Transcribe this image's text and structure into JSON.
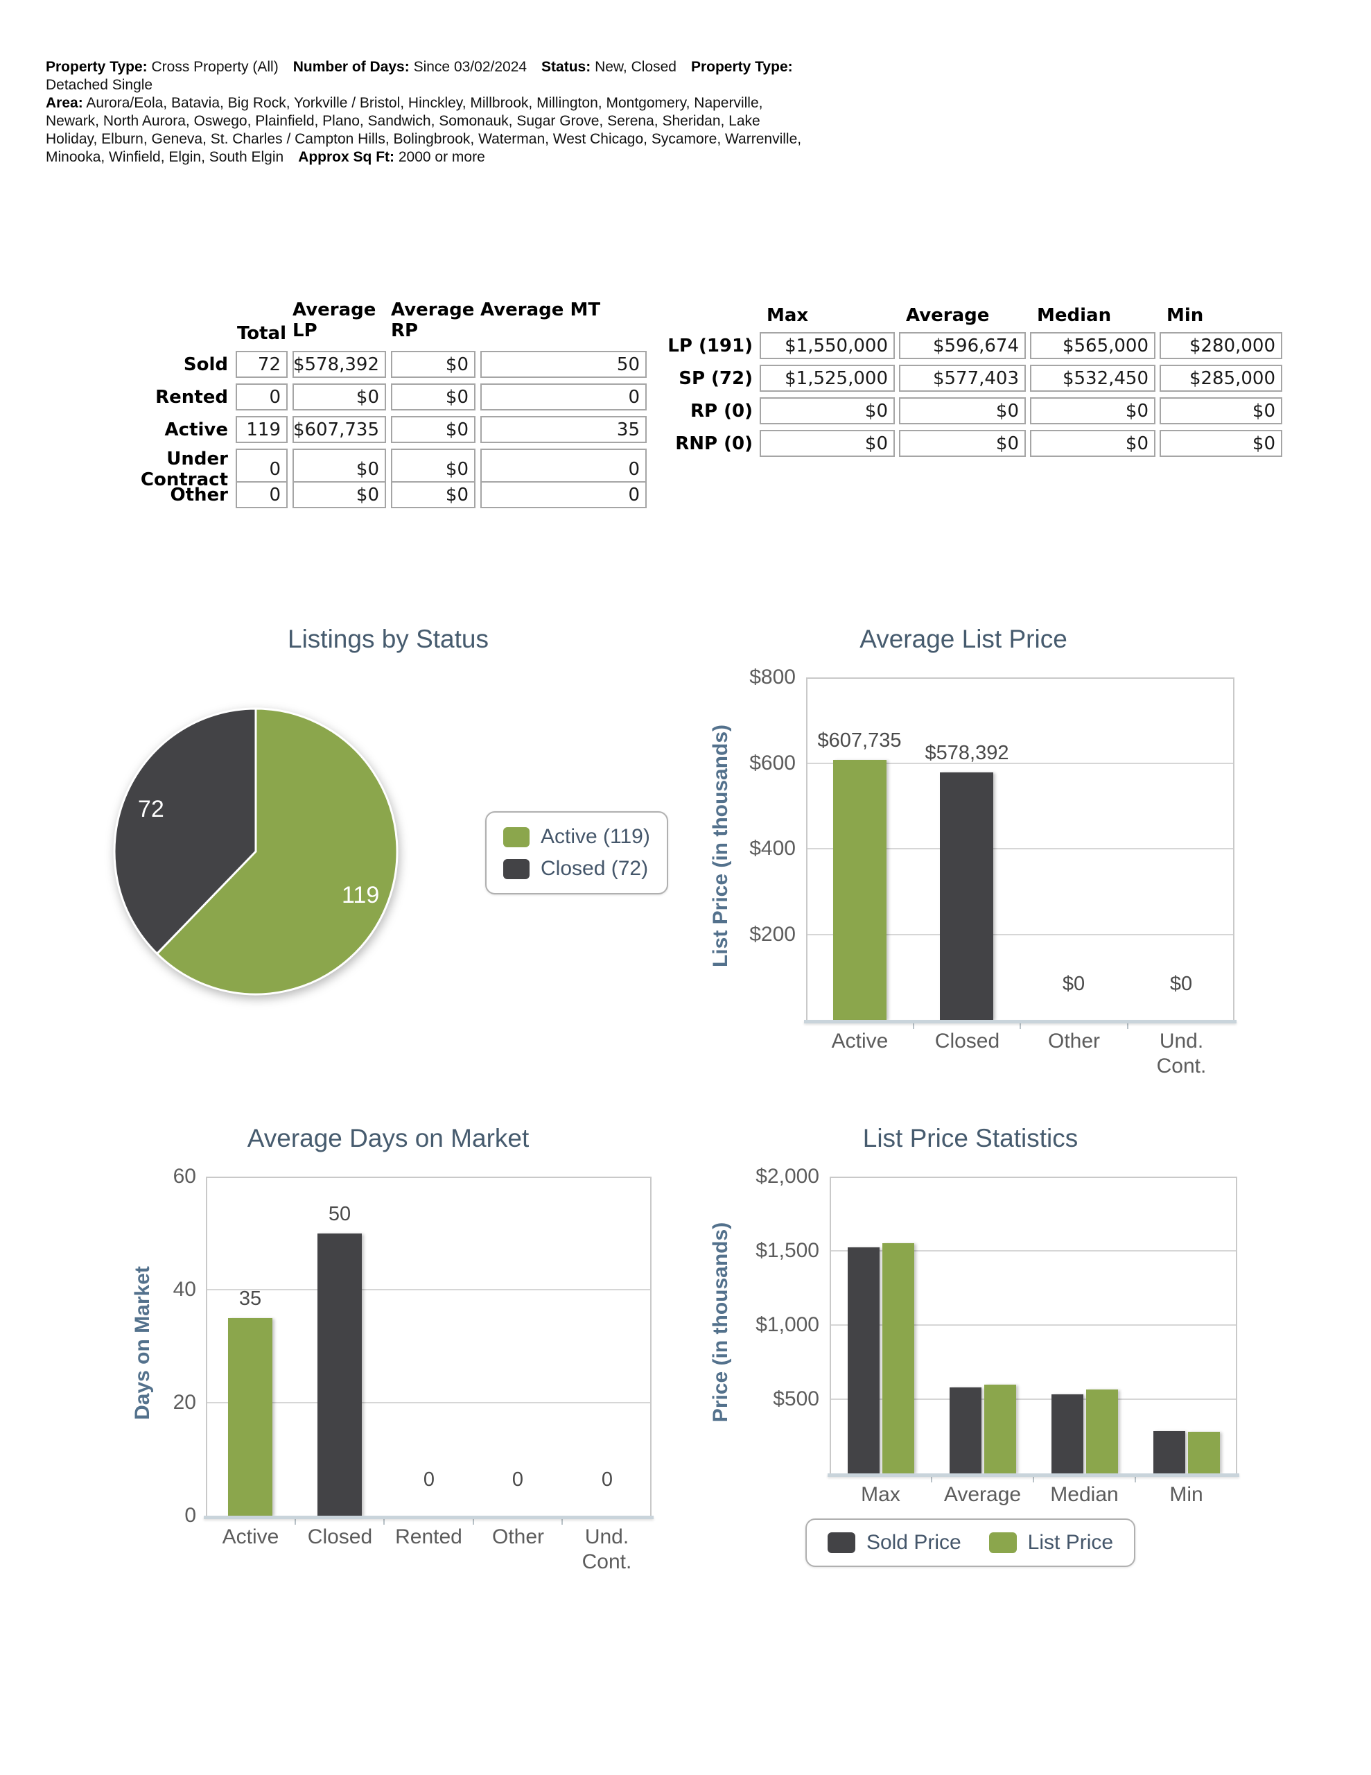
{
  "header": {
    "segments": [
      {
        "label": "Property Type:",
        "text": "Cross Property (All)"
      },
      {
        "label": "Number of Days:",
        "text": "Since 03/02/2024"
      },
      {
        "label": "Status:",
        "text": "New, Closed"
      },
      {
        "label": "Property Type:",
        "text": "Detached Single"
      },
      {
        "label": "Area:",
        "text": "Aurora/Eola, Batavia, Big Rock, Yorkville / Bristol, Hinckley, Millbrook, Millington, Montgomery, Naperville, Newark, North Aurora, Oswego, Plainfield, Plano, Sandwich, Somonauk, Sugar Grove, Serena, Sheridan, Lake Holiday, Elburn, Geneva, St. Charles / Campton Hills, Bolingbrook, Waterman, West Chicago, Sycamore, Warrenville, Minooka, Winfield, Elgin, South Elgin"
      },
      {
        "label": "Approx Sq Ft:",
        "text": "2000 or more"
      }
    ]
  },
  "status_table": {
    "headers": {
      "total": "Total",
      "avg_lp": "Average LP",
      "avg_rp": "Average RP",
      "avg_mt": "Average MT"
    },
    "rows": [
      {
        "label": "Sold",
        "total": "72",
        "avg_lp": "$578,392",
        "avg_rp": "$0",
        "avg_mt": "50"
      },
      {
        "label": "Rented",
        "total": "0",
        "avg_lp": "$0",
        "avg_rp": "$0",
        "avg_mt": "0"
      },
      {
        "label": "Active",
        "total": "119",
        "avg_lp": "$607,735",
        "avg_rp": "$0",
        "avg_mt": "35"
      },
      {
        "label": "Under Contract",
        "total": "0",
        "avg_lp": "$0",
        "avg_rp": "$0",
        "avg_mt": "0"
      },
      {
        "label": "Other",
        "total": "0",
        "avg_lp": "$0",
        "avg_rp": "$0",
        "avg_mt": "0"
      }
    ]
  },
  "price_table": {
    "headers": {
      "max": "Max",
      "average": "Average",
      "median": "Median",
      "min": "Min"
    },
    "rows": [
      {
        "label": "LP (191)",
        "max": "$1,550,000",
        "average": "$596,674",
        "median": "$565,000",
        "min": "$280,000"
      },
      {
        "label": "SP (72)",
        "max": "$1,525,000",
        "average": "$577,403",
        "median": "$532,450",
        "min": "$285,000"
      },
      {
        "label": "RP (0)",
        "max": "$0",
        "average": "$0",
        "median": "$0",
        "min": "$0"
      },
      {
        "label": "RNP (0)",
        "max": "$0",
        "average": "$0",
        "median": "$0",
        "min": "$0"
      }
    ]
  },
  "colors": {
    "green": "#8BA64C",
    "dark": "#434346",
    "title_blue": "#465B6E",
    "axis_blue": "#53718C",
    "tick_gray": "#5C5C5C"
  },
  "chart_data": [
    {
      "type": "pie",
      "title": "Listings by Status",
      "labels": [
        "Active",
        "Closed"
      ],
      "values": [
        119,
        72
      ],
      "slice_labels": [
        "119",
        "72"
      ],
      "colors": [
        "#8BA64C",
        "#434346"
      ],
      "legend": [
        "Active (119)",
        "Closed (72)"
      ],
      "legend_position": "right"
    },
    {
      "type": "bar",
      "title": "Average List Price",
      "ylabel": "List Price (in thousands)",
      "ylim": [
        0,
        800
      ],
      "yticks": [
        {
          "v": 200,
          "label": "$200"
        },
        {
          "v": 400,
          "label": "$400"
        },
        {
          "v": 600,
          "label": "$600"
        },
        {
          "v": 800,
          "label": "$800"
        }
      ],
      "categories": [
        "Active",
        "Closed",
        "Other",
        "Und.\nCont."
      ],
      "values": [
        607.735,
        578.392,
        0,
        0
      ],
      "bar_labels": [
        "$607,735",
        "$578,392",
        "$0",
        "$0"
      ],
      "bar_colors": [
        "#8BA64C",
        "#434346",
        "#8BA64C",
        "#434346"
      ],
      "grid": true
    },
    {
      "type": "bar",
      "title": "Average Days on Market",
      "ylabel": "Days on Market",
      "ylim": [
        0,
        60
      ],
      "yticks": [
        {
          "v": 0,
          "label": "0"
        },
        {
          "v": 20,
          "label": "20"
        },
        {
          "v": 40,
          "label": "40"
        },
        {
          "v": 60,
          "label": "60"
        }
      ],
      "categories": [
        "Active",
        "Closed",
        "Rented",
        "Other",
        "Und.\nCont."
      ],
      "values": [
        35,
        50,
        0,
        0,
        0
      ],
      "bar_labels": [
        "35",
        "50",
        "0",
        "0",
        "0"
      ],
      "bar_colors": [
        "#8BA64C",
        "#434346",
        "#8BA64C",
        "#434346",
        "#8BA64C"
      ],
      "grid": true
    },
    {
      "type": "grouped_bar",
      "title": "List Price Statistics",
      "ylabel": "Price (in thousands)",
      "ylim": [
        0,
        2000
      ],
      "yticks": [
        {
          "v": 500,
          "label": "$500"
        },
        {
          "v": 1000,
          "label": "$1,000"
        },
        {
          "v": 1500,
          "label": "$1,500"
        },
        {
          "v": 2000,
          "label": "$2,000"
        }
      ],
      "categories": [
        "Max",
        "Average",
        "Median",
        "Min"
      ],
      "series": [
        {
          "name": "Sold Price",
          "color": "#434346",
          "values": [
            1525,
            577.403,
            532.45,
            285
          ]
        },
        {
          "name": "List Price",
          "color": "#8BA64C",
          "values": [
            1550,
            596.674,
            565,
            280
          ]
        }
      ],
      "legend_position": "bottom",
      "grid": true
    }
  ]
}
